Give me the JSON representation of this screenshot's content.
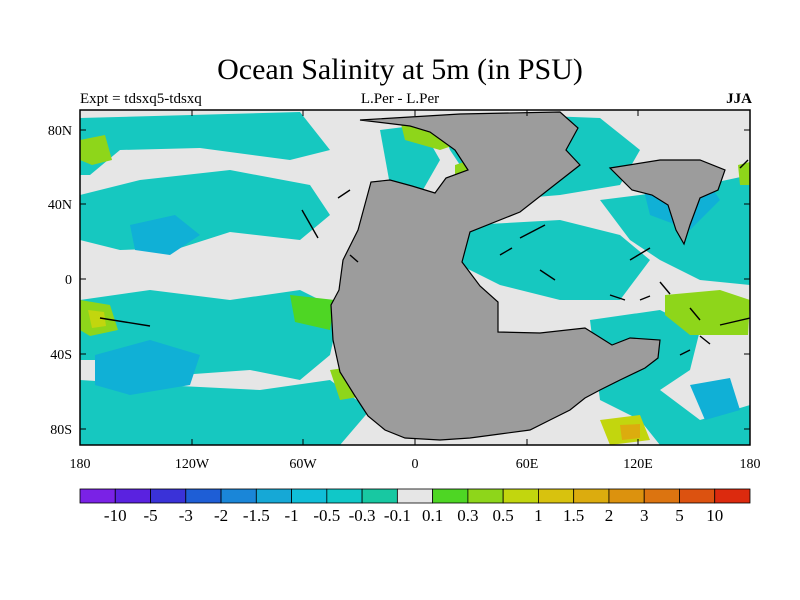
{
  "title": "Ocean Salinity at 5m (in PSU)",
  "subtitle_left": "Expt = tdsxq5-tdsxq",
  "subtitle_center": "L.Per - L.Per",
  "subtitle_right": "JJA",
  "x_ticks": [
    "180",
    "120W",
    "60W",
    "0",
    "60E",
    "120E",
    "180"
  ],
  "y_ticks": [
    "80N",
    "40N",
    "0",
    "40S",
    "80S"
  ],
  "colorbar": {
    "colors": [
      "#7a22e6",
      "#5a22e0",
      "#3a32d8",
      "#1e5ed6",
      "#1a86d8",
      "#16a8d6",
      "#10bed8",
      "#10c8c8",
      "#18c8a2",
      "#e6e6e6",
      "#4ed624",
      "#8ed61a",
      "#c2d60e",
      "#d8c20e",
      "#dcac0e",
      "#dc920e",
      "#dc7410",
      "#dc5210",
      "#dc2a0e"
    ],
    "labels": [
      "-10",
      "-5",
      "-3",
      "-2",
      "-1.5",
      "-1",
      "-0.5",
      "-0.3",
      "-0.1",
      "0.1",
      "0.3",
      "0.5",
      "1",
      "1.5",
      "2",
      "3",
      "5",
      "10"
    ]
  },
  "map": {
    "land_color": "#9c9c9c",
    "ocean_neutral_color": "#e6e6e6",
    "ocean_base_color": "#16c8c0"
  }
}
